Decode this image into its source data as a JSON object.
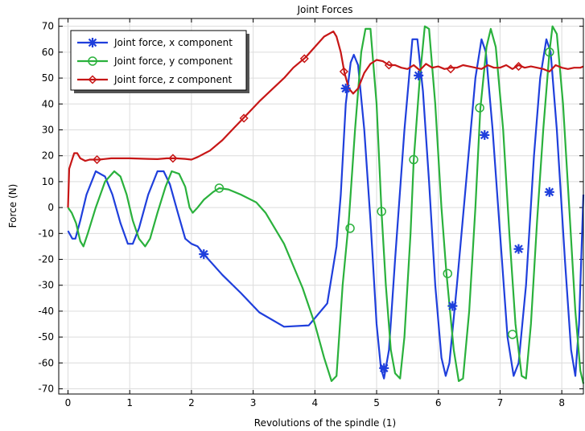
{
  "chart_data": {
    "type": "line",
    "title": "Joint Forces",
    "xlabel": "Revolutions of the spindle (1)",
    "ylabel": "Force (N)",
    "xlim": [
      -0.15,
      8.35
    ],
    "ylim": [
      -72,
      73
    ],
    "x_ticks": [
      0,
      1,
      2,
      3,
      4,
      5,
      6,
      7,
      8
    ],
    "y_ticks": [
      -70,
      -60,
      -50,
      -40,
      -30,
      -20,
      -10,
      0,
      10,
      20,
      30,
      40,
      50,
      60,
      70
    ],
    "grid": true,
    "legend_position": "top-left",
    "series": [
      {
        "name": "Joint force, x component",
        "color": "#1f3fdc",
        "marker": "asterisk",
        "points": [
          [
            0,
            -9
          ],
          [
            0.07,
            -12
          ],
          [
            0.12,
            -12
          ],
          [
            0.2,
            -5
          ],
          [
            0.3,
            5
          ],
          [
            0.45,
            14
          ],
          [
            0.6,
            12
          ],
          [
            0.72,
            5
          ],
          [
            0.85,
            -6
          ],
          [
            0.97,
            -14
          ],
          [
            1.05,
            -14
          ],
          [
            1.15,
            -8
          ],
          [
            1.3,
            5
          ],
          [
            1.45,
            14
          ],
          [
            1.55,
            14
          ],
          [
            1.65,
            9
          ],
          [
            1.78,
            -2
          ],
          [
            1.9,
            -12
          ],
          [
            2.0,
            -14
          ],
          [
            2.1,
            -15
          ],
          [
            2.2,
            -18
          ],
          [
            2.5,
            -26
          ],
          [
            2.8,
            -33
          ],
          [
            3.1,
            -40.5
          ],
          [
            3.5,
            -46
          ],
          [
            3.9,
            -45.5
          ],
          [
            4.2,
            -37
          ],
          [
            4.35,
            -15
          ],
          [
            4.42,
            5
          ],
          [
            4.5,
            40
          ],
          [
            4.58,
            56
          ],
          [
            4.63,
            59
          ],
          [
            4.7,
            55
          ],
          [
            4.8,
            30
          ],
          [
            4.9,
            -5
          ],
          [
            5.0,
            -45
          ],
          [
            5.07,
            -62
          ],
          [
            5.12,
            -66
          ],
          [
            5.2,
            -55
          ],
          [
            5.3,
            -20
          ],
          [
            5.45,
            30
          ],
          [
            5.58,
            65
          ],
          [
            5.66,
            65
          ],
          [
            5.75,
            45
          ],
          [
            5.85,
            10
          ],
          [
            5.95,
            -30
          ],
          [
            6.05,
            -58
          ],
          [
            6.12,
            -65
          ],
          [
            6.18,
            -60
          ],
          [
            6.3,
            -30
          ],
          [
            6.45,
            10
          ],
          [
            6.6,
            50
          ],
          [
            6.7,
            65
          ],
          [
            6.77,
            60
          ],
          [
            6.88,
            30
          ],
          [
            7.0,
            -10
          ],
          [
            7.12,
            -50
          ],
          [
            7.22,
            -65
          ],
          [
            7.3,
            -60
          ],
          [
            7.42,
            -30
          ],
          [
            7.55,
            20
          ],
          [
            7.65,
            50
          ],
          [
            7.75,
            65
          ],
          [
            7.82,
            60
          ],
          [
            7.92,
            30
          ],
          [
            8.05,
            -20
          ],
          [
            8.15,
            -55
          ],
          [
            8.22,
            -65
          ],
          [
            8.28,
            -45
          ],
          [
            8.35,
            5
          ]
        ],
        "markers": [
          [
            2.2,
            -18
          ],
          [
            4.5,
            46
          ],
          [
            5.12,
            -62
          ],
          [
            5.68,
            51
          ],
          [
            6.23,
            -38
          ],
          [
            6.75,
            28
          ],
          [
            7.3,
            -16
          ],
          [
            7.8,
            6
          ]
        ]
      },
      {
        "name": "Joint force, y component",
        "color": "#2ab13c",
        "marker": "circle",
        "points": [
          [
            0,
            0
          ],
          [
            0.06,
            -2
          ],
          [
            0.13,
            -6
          ],
          [
            0.2,
            -13
          ],
          [
            0.25,
            -15
          ],
          [
            0.32,
            -10
          ],
          [
            0.45,
            0
          ],
          [
            0.6,
            10
          ],
          [
            0.75,
            14
          ],
          [
            0.85,
            12
          ],
          [
            0.95,
            5
          ],
          [
            1.05,
            -5
          ],
          [
            1.15,
            -12
          ],
          [
            1.25,
            -15
          ],
          [
            1.33,
            -12
          ],
          [
            1.45,
            -2
          ],
          [
            1.58,
            8
          ],
          [
            1.68,
            14
          ],
          [
            1.8,
            13
          ],
          [
            1.9,
            8
          ],
          [
            1.97,
            0
          ],
          [
            2.02,
            -2
          ],
          [
            2.1,
            0
          ],
          [
            2.2,
            3
          ],
          [
            2.35,
            6
          ],
          [
            2.45,
            7.5
          ],
          [
            2.6,
            7
          ],
          [
            2.8,
            5
          ],
          [
            3.05,
            2
          ],
          [
            3.2,
            -2
          ],
          [
            3.5,
            -14
          ],
          [
            3.8,
            -31
          ],
          [
            4.0,
            -45
          ],
          [
            4.15,
            -58
          ],
          [
            4.27,
            -67
          ],
          [
            4.35,
            -65
          ],
          [
            4.45,
            -30
          ],
          [
            4.55,
            -5
          ],
          [
            4.65,
            30
          ],
          [
            4.75,
            60
          ],
          [
            4.82,
            69
          ],
          [
            4.9,
            69
          ],
          [
            5.0,
            40
          ],
          [
            5.08,
            -2
          ],
          [
            5.15,
            -30
          ],
          [
            5.23,
            -55
          ],
          [
            5.3,
            -64
          ],
          [
            5.38,
            -66
          ],
          [
            5.45,
            -50
          ],
          [
            5.55,
            -10
          ],
          [
            5.6,
            18
          ],
          [
            5.7,
            50
          ],
          [
            5.78,
            70
          ],
          [
            5.85,
            69
          ],
          [
            5.95,
            40
          ],
          [
            6.05,
            0
          ],
          [
            6.13,
            -25
          ],
          [
            6.25,
            -55
          ],
          [
            6.33,
            -67
          ],
          [
            6.4,
            -66
          ],
          [
            6.5,
            -40
          ],
          [
            6.6,
            0
          ],
          [
            6.68,
            38
          ],
          [
            6.78,
            62
          ],
          [
            6.85,
            69
          ],
          [
            6.93,
            62
          ],
          [
            7.05,
            30
          ],
          [
            7.15,
            -10
          ],
          [
            7.25,
            -45
          ],
          [
            7.35,
            -65
          ],
          [
            7.42,
            -66
          ],
          [
            7.5,
            -45
          ],
          [
            7.6,
            -5
          ],
          [
            7.7,
            30
          ],
          [
            7.8,
            60
          ],
          [
            7.85,
            70
          ],
          [
            7.92,
            67
          ],
          [
            8.02,
            40
          ],
          [
            8.12,
            0
          ],
          [
            8.22,
            -40
          ],
          [
            8.3,
            -63
          ],
          [
            8.35,
            -68
          ]
        ],
        "markers": [
          [
            2.45,
            7.5
          ],
          [
            4.57,
            -8
          ],
          [
            5.08,
            -1.5
          ],
          [
            5.6,
            18.5
          ],
          [
            6.15,
            -25.5
          ],
          [
            6.67,
            38.5
          ],
          [
            7.2,
            -49
          ],
          [
            7.8,
            60
          ]
        ]
      },
      {
        "name": "Joint force, z component",
        "color": "#c71616",
        "marker": "diamond",
        "points": [
          [
            0,
            0
          ],
          [
            0.02,
            15
          ],
          [
            0.06,
            18
          ],
          [
            0.1,
            21
          ],
          [
            0.15,
            21
          ],
          [
            0.2,
            19
          ],
          [
            0.28,
            18
          ],
          [
            0.35,
            18.5
          ],
          [
            0.5,
            18.5
          ],
          [
            0.7,
            19
          ],
          [
            1.0,
            19
          ],
          [
            1.3,
            18.8
          ],
          [
            1.45,
            18.7
          ],
          [
            1.6,
            19
          ],
          [
            1.75,
            19
          ],
          [
            1.9,
            18.8
          ],
          [
            2.0,
            18.5
          ],
          [
            2.1,
            19.5
          ],
          [
            2.3,
            22
          ],
          [
            2.5,
            26
          ],
          [
            2.7,
            31
          ],
          [
            2.9,
            36
          ],
          [
            3.1,
            41
          ],
          [
            3.3,
            45.5
          ],
          [
            3.5,
            50
          ],
          [
            3.65,
            54
          ],
          [
            3.85,
            58
          ],
          [
            4.0,
            62
          ],
          [
            4.15,
            66
          ],
          [
            4.3,
            68
          ],
          [
            4.35,
            66
          ],
          [
            4.42,
            60
          ],
          [
            4.48,
            52
          ],
          [
            4.55,
            46
          ],
          [
            4.62,
            44
          ],
          [
            4.7,
            46
          ],
          [
            4.8,
            52
          ],
          [
            4.9,
            55.5
          ],
          [
            5.0,
            57
          ],
          [
            5.1,
            56.5
          ],
          [
            5.2,
            55
          ],
          [
            5.3,
            55
          ],
          [
            5.4,
            54
          ],
          [
            5.5,
            53.5
          ],
          [
            5.6,
            55
          ],
          [
            5.7,
            53
          ],
          [
            5.8,
            55.5
          ],
          [
            5.9,
            54
          ],
          [
            6.0,
            54.5
          ],
          [
            6.1,
            53.5
          ],
          [
            6.2,
            54
          ],
          [
            6.3,
            54
          ],
          [
            6.4,
            55
          ],
          [
            6.5,
            54.5
          ],
          [
            6.6,
            54
          ],
          [
            6.7,
            53.5
          ],
          [
            6.8,
            55
          ],
          [
            6.9,
            54
          ],
          [
            7.0,
            54
          ],
          [
            7.1,
            55
          ],
          [
            7.2,
            53.5
          ],
          [
            7.3,
            55
          ],
          [
            7.4,
            54
          ],
          [
            7.5,
            54.5
          ],
          [
            7.6,
            54
          ],
          [
            7.7,
            53.5
          ],
          [
            7.8,
            52.5
          ],
          [
            7.9,
            55
          ],
          [
            8.0,
            54
          ],
          [
            8.1,
            53.5
          ],
          [
            8.2,
            54
          ],
          [
            8.3,
            54
          ],
          [
            8.35,
            54.5
          ]
        ],
        "markers": [
          [
            0.47,
            18.5
          ],
          [
            1.7,
            19
          ],
          [
            2.85,
            34.5
          ],
          [
            3.83,
            57.5
          ],
          [
            4.47,
            52.5
          ],
          [
            5.2,
            55
          ],
          [
            6.2,
            53.5
          ],
          [
            7.3,
            54.5
          ]
        ]
      }
    ]
  }
}
